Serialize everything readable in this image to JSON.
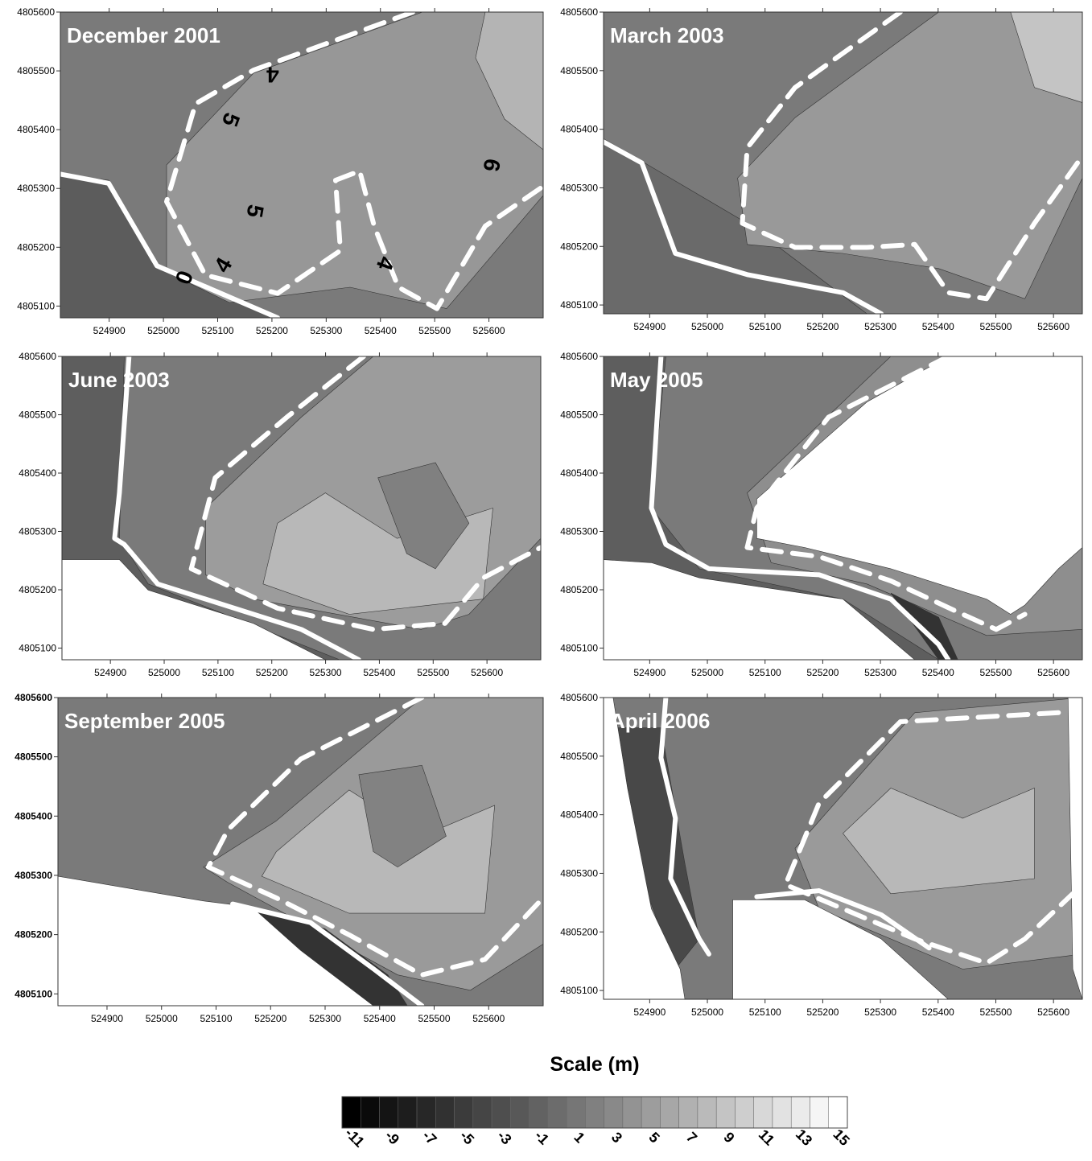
{
  "panels": [
    {
      "title": "December 2001",
      "xlim": [
        524810,
        525700
      ],
      "ylim": [
        4805080,
        4805600
      ],
      "xticks": [
        524900,
        525000,
        525100,
        525200,
        525300,
        525400,
        525500,
        525600
      ],
      "yticks": [
        4805100,
        4805200,
        4805300,
        4805400,
        4805500,
        4805600
      ],
      "contour_labels": [
        4,
        5,
        5,
        4,
        4,
        0,
        6
      ]
    },
    {
      "title": "March 2003",
      "xlim": [
        524820,
        525650
      ],
      "ylim": [
        4805085,
        4805600
      ],
      "xticks": [
        524900,
        525000,
        525100,
        525200,
        525300,
        525400,
        525500,
        525600
      ],
      "yticks": [
        4805100,
        4805200,
        4805300,
        4805400,
        4805500,
        4805600
      ]
    },
    {
      "title": "June 2003",
      "xlim": [
        524810,
        525700
      ],
      "ylim": [
        4805080,
        4805600
      ],
      "xticks": [
        524900,
        525000,
        525100,
        525200,
        525300,
        525400,
        525500,
        525600
      ],
      "yticks": [
        4805100,
        4805200,
        4805300,
        4805400,
        4805500,
        4805600
      ]
    },
    {
      "title": "May 2005",
      "xlim": [
        524820,
        525650
      ],
      "ylim": [
        4805080,
        4805600
      ],
      "xticks": [
        524900,
        525000,
        525100,
        525200,
        525300,
        525400,
        525500,
        525600
      ],
      "yticks": [
        4805100,
        4805200,
        4805300,
        4805400,
        4805500,
        4805600
      ]
    },
    {
      "title": "September 2005",
      "xlim": [
        524810,
        525700
      ],
      "ylim": [
        4805080,
        4805600
      ],
      "xticks": [
        524900,
        525000,
        525100,
        525200,
        525300,
        525400,
        525500,
        525600
      ],
      "yticks": [
        4805100,
        4805200,
        4805300,
        4805400,
        4805500,
        4805600
      ]
    },
    {
      "title": "April 2006",
      "xlim": [
        524820,
        525650
      ],
      "ylim": [
        4805085,
        4805600
      ],
      "xticks": [
        524900,
        525000,
        525100,
        525200,
        525300,
        525400,
        525500,
        525600
      ],
      "yticks": [
        4805100,
        4805200,
        4805300,
        4805400,
        4805500,
        4805600
      ]
    }
  ],
  "scale": {
    "title": "Scale (m)",
    "lim": [
      -11.5,
      15.5
    ],
    "ticks": [
      -11,
      -9,
      -7,
      -5,
      -3,
      -1,
      1,
      3,
      5,
      7,
      9,
      11,
      13,
      15
    ]
  }
}
